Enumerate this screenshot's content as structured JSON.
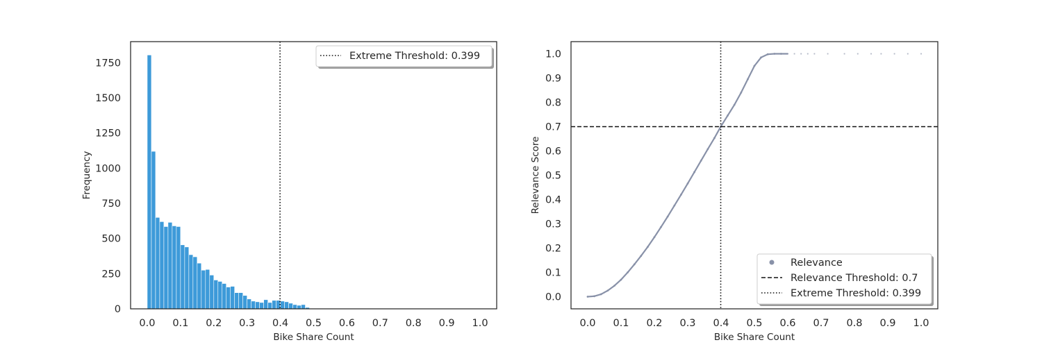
{
  "colors": {
    "bar": "#3d9ad9",
    "relevance": "#8891a8",
    "threshold_line": "#111111",
    "axes": "#262626"
  },
  "chart_data": [
    {
      "type": "bar",
      "xlabel": "Bike Share Count",
      "ylabel": "Frequency",
      "xlim": [
        -0.05,
        1.05
      ],
      "ylim": [
        0,
        1900
      ],
      "xticks": [
        "0.0",
        "0.1",
        "0.2",
        "0.3",
        "0.4",
        "0.5",
        "0.6",
        "0.7",
        "0.8",
        "0.9",
        "1.0"
      ],
      "yticks": [
        "0",
        "250",
        "500",
        "750",
        "1000",
        "1250",
        "1500",
        "1750"
      ],
      "bin_start": 0.0,
      "bin_width": 0.0125,
      "values": [
        1805,
        1120,
        650,
        620,
        585,
        615,
        590,
        585,
        455,
        440,
        385,
        370,
        325,
        275,
        280,
        240,
        205,
        195,
        180,
        155,
        160,
        115,
        115,
        95,
        70,
        55,
        50,
        45,
        65,
        45,
        60,
        60,
        55,
        50,
        40,
        30,
        25,
        30,
        10
      ],
      "vline": {
        "x": 0.399,
        "style": "dotted"
      },
      "legend": {
        "position": "top-right",
        "entries": [
          {
            "label": "Extreme Threshold: 0.399",
            "style": "dotted"
          }
        ]
      }
    },
    {
      "type": "scatter",
      "xlabel": "Bike Share Count",
      "ylabel": "Relevance Score",
      "xlim": [
        -0.05,
        1.05
      ],
      "ylim": [
        -0.05,
        1.05
      ],
      "xticks": [
        "0.0",
        "0.1",
        "0.2",
        "0.3",
        "0.4",
        "0.5",
        "0.6",
        "0.7",
        "0.8",
        "0.9",
        "1.0"
      ],
      "yticks": [
        "0.0",
        "0.1",
        "0.2",
        "0.3",
        "0.4",
        "0.5",
        "0.6",
        "0.7",
        "0.8",
        "0.9",
        "1.0"
      ],
      "series": [
        {
          "name": "Relevance",
          "x": [
            0.0,
            0.02,
            0.04,
            0.06,
            0.08,
            0.1,
            0.12,
            0.14,
            0.16,
            0.18,
            0.2,
            0.22,
            0.24,
            0.26,
            0.28,
            0.3,
            0.32,
            0.34,
            0.36,
            0.38,
            0.399,
            0.42,
            0.44,
            0.46,
            0.48,
            0.5,
            0.52,
            0.54,
            0.56,
            0.58,
            0.6,
            0.62,
            0.64,
            0.66,
            0.68,
            0.72,
            0.77,
            0.81,
            0.85,
            0.88,
            0.92,
            0.96,
            1.0
          ],
          "y": [
            0.0,
            0.002,
            0.01,
            0.025,
            0.045,
            0.07,
            0.1,
            0.133,
            0.168,
            0.205,
            0.245,
            0.287,
            0.33,
            0.375,
            0.42,
            0.466,
            0.513,
            0.56,
            0.607,
            0.653,
            0.7,
            0.746,
            0.79,
            0.84,
            0.895,
            0.95,
            0.985,
            0.998,
            1.0,
            1.0,
            1.0,
            1.0,
            1.0,
            1.0,
            1.0,
            1.0,
            1.0,
            1.0,
            1.0,
            1.0,
            1.0,
            1.0,
            1.0
          ]
        }
      ],
      "hline": {
        "y": 0.7,
        "style": "dashed"
      },
      "vline": {
        "x": 0.399,
        "style": "dotted"
      },
      "legend": {
        "position": "lower-right",
        "entries": [
          {
            "label": "Relevance",
            "style": "marker"
          },
          {
            "label": "Relevance Threshold: 0.7",
            "style": "dashed"
          },
          {
            "label": "Extreme Threshold: 0.399",
            "style": "dotted"
          }
        ]
      }
    }
  ]
}
